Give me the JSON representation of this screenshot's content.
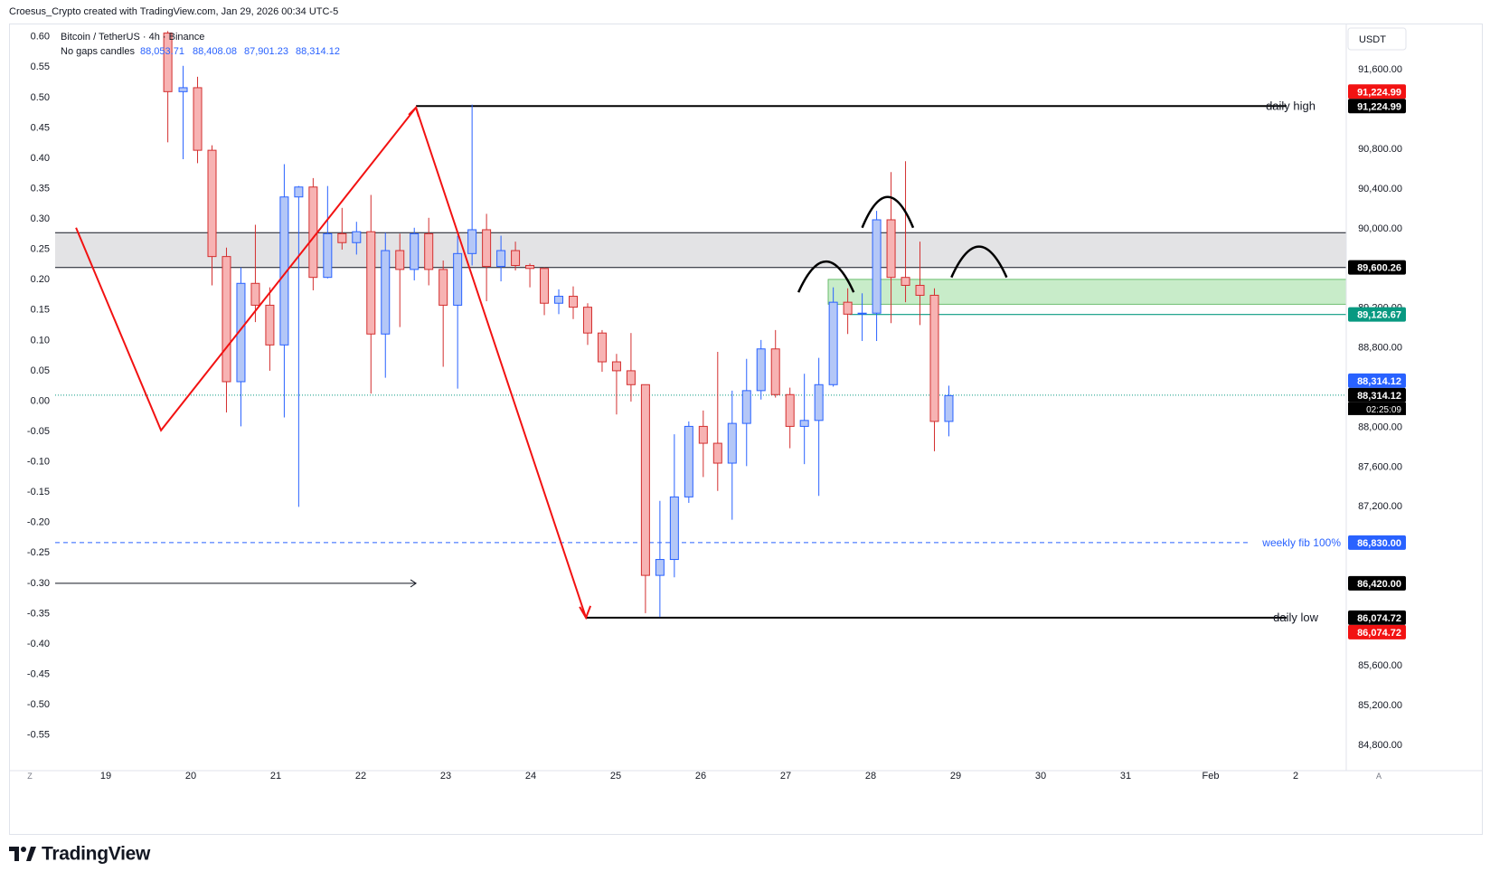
{
  "header": {
    "attribution": "Croesus_Crypto created with TradingView.com, Jan 29, 2026 00:34 UTC-5"
  },
  "legend": {
    "symbol": "Bitcoin / TetherUS · 4h · Binance",
    "mode": "No gaps candles",
    "ohlc": [
      "88,053.71",
      "88,408.08",
      "87,901.23",
      "88,314.12"
    ]
  },
  "brand": "TradingView",
  "currency_button": "USDT",
  "corner_labels": {
    "left": "Z",
    "right": "A"
  },
  "colors": {
    "up": "#b4c7f7",
    "up_border": "#2962ff",
    "down": "#f7b3b3",
    "down_border": "#d32f2f",
    "drawing_red": "#f21212",
    "zone_gray": "#e3e3e5",
    "zone_green": "#c8ecc9",
    "accent_blue": "#2962ff"
  },
  "chart_data": {
    "type": "candlestick",
    "title": "Bitcoin / TetherUS · 4h · Binance",
    "timeframe": "4h",
    "price_axis": {
      "range": [
        84500,
        91900
      ],
      "ticks": [
        "91,600.00",
        "90,800.00",
        "90,400.00",
        "90,000.00",
        "89,200.00",
        "88,800.00",
        "88,000.00",
        "87,600.00",
        "87,200.00",
        "85,600.00",
        "85,200.00",
        "84,800.00"
      ]
    },
    "left_axis": {
      "range": [
        -0.6,
        0.63
      ],
      "ticks": [
        "0.60",
        "0.55",
        "0.50",
        "0.45",
        "0.40",
        "0.35",
        "0.30",
        "0.25",
        "0.20",
        "0.15",
        "0.10",
        "0.05",
        "0.00",
        "-0.05",
        "-0.10",
        "-0.15",
        "-0.20",
        "-0.25",
        "-0.30",
        "-0.35",
        "-0.40",
        "-0.45",
        "-0.50",
        "-0.55"
      ]
    },
    "x_axis": {
      "labels": [
        "19",
        "20",
        "21",
        "22",
        "23",
        "24",
        "25",
        "26",
        "27",
        "28",
        "29",
        "30",
        "31",
        "Feb",
        "2"
      ]
    },
    "candles": [
      {
        "t": 19.73,
        "o": 91960,
        "h": 91980,
        "l": 90860,
        "c": 91370
      },
      {
        "t": 19.91,
        "o": 91370,
        "h": 91630,
        "l": 90690,
        "c": 91410
      },
      {
        "t": 20.08,
        "o": 91410,
        "h": 91520,
        "l": 90650,
        "c": 90780
      },
      {
        "t": 20.25,
        "o": 90780,
        "h": 90830,
        "l": 89420,
        "c": 89710
      },
      {
        "t": 20.42,
        "o": 89710,
        "h": 89800,
        "l": 88140,
        "c": 88450
      },
      {
        "t": 20.59,
        "o": 88450,
        "h": 89600,
        "l": 88000,
        "c": 89440
      },
      {
        "t": 20.76,
        "o": 89440,
        "h": 90030,
        "l": 89050,
        "c": 89220
      },
      {
        "t": 20.93,
        "o": 89220,
        "h": 89400,
        "l": 88560,
        "c": 88820
      },
      {
        "t": 21.1,
        "o": 88820,
        "h": 90640,
        "l": 88090,
        "c": 90310
      },
      {
        "t": 21.27,
        "o": 90310,
        "h": 90420,
        "l": 87190,
        "c": 90410
      },
      {
        "t": 21.44,
        "o": 90410,
        "h": 90500,
        "l": 89370,
        "c": 89500
      },
      {
        "t": 21.61,
        "o": 89500,
        "h": 90420,
        "l": 89490,
        "c": 89940
      },
      {
        "t": 21.78,
        "o": 89940,
        "h": 90200,
        "l": 89780,
        "c": 89850
      },
      {
        "t": 21.95,
        "o": 89850,
        "h": 90060,
        "l": 89730,
        "c": 89960
      },
      {
        "t": 22.12,
        "o": 89960,
        "h": 90330,
        "l": 88330,
        "c": 88930
      },
      {
        "t": 22.29,
        "o": 88930,
        "h": 89950,
        "l": 88490,
        "c": 89770
      },
      {
        "t": 22.46,
        "o": 89770,
        "h": 89940,
        "l": 89000,
        "c": 89580
      },
      {
        "t": 22.63,
        "o": 89580,
        "h": 90000,
        "l": 89470,
        "c": 89940
      },
      {
        "t": 22.8,
        "o": 89940,
        "h": 90100,
        "l": 89420,
        "c": 89580
      },
      {
        "t": 22.97,
        "o": 89580,
        "h": 89670,
        "l": 88600,
        "c": 89220
      },
      {
        "t": 23.14,
        "o": 89220,
        "h": 89920,
        "l": 88380,
        "c": 89740
      },
      {
        "t": 23.31,
        "o": 89740,
        "h": 91240,
        "l": 89620,
        "c": 89980
      },
      {
        "t": 23.48,
        "o": 89980,
        "h": 90140,
        "l": 89260,
        "c": 89610
      },
      {
        "t": 23.65,
        "o": 89610,
        "h": 89920,
        "l": 89460,
        "c": 89770
      },
      {
        "t": 23.82,
        "o": 89770,
        "h": 89860,
        "l": 89570,
        "c": 89620
      },
      {
        "t": 23.99,
        "o": 89620,
        "h": 89640,
        "l": 89400,
        "c": 89590
      },
      {
        "t": 24.16,
        "o": 89590,
        "h": 89600,
        "l": 89120,
        "c": 89240
      },
      {
        "t": 24.33,
        "o": 89240,
        "h": 89380,
        "l": 89130,
        "c": 89310
      },
      {
        "t": 24.5,
        "o": 89310,
        "h": 89410,
        "l": 89080,
        "c": 89200
      },
      {
        "t": 24.67,
        "o": 89200,
        "h": 89240,
        "l": 88820,
        "c": 88940
      },
      {
        "t": 24.84,
        "o": 88940,
        "h": 88970,
        "l": 88550,
        "c": 88650
      },
      {
        "t": 25.01,
        "o": 88650,
        "h": 88730,
        "l": 88120,
        "c": 88560
      },
      {
        "t": 25.18,
        "o": 88560,
        "h": 88940,
        "l": 88250,
        "c": 88420
      },
      {
        "t": 25.35,
        "o": 88420,
        "h": 88420,
        "l": 86120,
        "c": 86500
      },
      {
        "t": 25.52,
        "o": 86500,
        "h": 87250,
        "l": 86080,
        "c": 86660
      },
      {
        "t": 25.69,
        "o": 86660,
        "h": 87920,
        "l": 86480,
        "c": 87290
      },
      {
        "t": 25.86,
        "o": 87290,
        "h": 88050,
        "l": 87230,
        "c": 88000
      },
      {
        "t": 26.03,
        "o": 88000,
        "h": 88160,
        "l": 87490,
        "c": 87830
      },
      {
        "t": 26.2,
        "o": 87830,
        "h": 88750,
        "l": 87350,
        "c": 87630
      },
      {
        "t": 26.37,
        "o": 87630,
        "h": 88360,
        "l": 87060,
        "c": 88030
      },
      {
        "t": 26.54,
        "o": 88030,
        "h": 88680,
        "l": 87600,
        "c": 88360
      },
      {
        "t": 26.71,
        "o": 88360,
        "h": 88870,
        "l": 88270,
        "c": 88780
      },
      {
        "t": 26.88,
        "o": 88780,
        "h": 88970,
        "l": 88290,
        "c": 88320
      },
      {
        "t": 27.05,
        "o": 88320,
        "h": 88390,
        "l": 87780,
        "c": 88000
      },
      {
        "t": 27.22,
        "o": 88000,
        "h": 88530,
        "l": 87620,
        "c": 88060
      },
      {
        "t": 27.39,
        "o": 88060,
        "h": 88690,
        "l": 87300,
        "c": 88420
      },
      {
        "t": 27.56,
        "o": 88420,
        "h": 89400,
        "l": 88400,
        "c": 89250
      },
      {
        "t": 27.73,
        "o": 89250,
        "h": 89390,
        "l": 88930,
        "c": 89130
      },
      {
        "t": 27.9,
        "o": 89140,
        "h": 89340,
        "l": 88860,
        "c": 89140
      },
      {
        "t": 28.07,
        "o": 89140,
        "h": 90170,
        "l": 88860,
        "c": 90080
      },
      {
        "t": 28.24,
        "o": 90080,
        "h": 90560,
        "l": 89040,
        "c": 89500
      },
      {
        "t": 28.41,
        "o": 89500,
        "h": 90670,
        "l": 89250,
        "c": 89420
      },
      {
        "t": 28.58,
        "o": 89420,
        "h": 89860,
        "l": 89020,
        "c": 89320
      },
      {
        "t": 28.75,
        "o": 89320,
        "h": 89390,
        "l": 87750,
        "c": 88050
      },
      {
        "t": 28.92,
        "o": 88050,
        "h": 88410,
        "l": 87900,
        "c": 88310
      }
    ],
    "levels": [
      {
        "price": 91224.99,
        "label": "daily high",
        "badges": [
          "91,224.99",
          "91,224.99"
        ]
      },
      {
        "price": 86074.72,
        "label": "daily low",
        "badges": [
          "86,074.72",
          "86,074.72"
        ]
      },
      {
        "price": 86830.0,
        "label": "weekly fib 100%",
        "badges": [
          "86,830.00"
        ]
      },
      {
        "price": 89126.67,
        "badges": [
          "89,126.67"
        ]
      },
      {
        "price": 89600.26,
        "badges": [
          "89,600.26"
        ]
      },
      {
        "price": 86420.0,
        "badges": [
          "86,420.00"
        ]
      },
      {
        "price": 88314.12,
        "badges": [
          "88,314.12",
          "88,314.12"
        ],
        "countdown": "02:25:09"
      }
    ],
    "zones": [
      {
        "name": "gray-zone",
        "from": 89600,
        "to": 89950
      },
      {
        "name": "green-zone",
        "from": 89230,
        "to": 89480
      }
    ],
    "drawings": {
      "zigzag": [
        {
          "t": 18.65,
          "p": 90000
        },
        {
          "t": 19.65,
          "p": 87960
        },
        {
          "t": 22.65,
          "p": 91210
        },
        {
          "t": 24.65,
          "p": 86074
        }
      ],
      "arrow": [
        {
          "t": 18.65,
          "p": 86420
        },
        {
          "t": 22.65,
          "p": 86420
        }
      ],
      "arcs": [
        {
          "t1": 27.15,
          "t2": 27.8,
          "p": 89350
        },
        {
          "t1": 27.9,
          "t2": 28.5,
          "p": 90000
        },
        {
          "t1": 28.95,
          "t2": 29.6,
          "p": 89500
        }
      ]
    }
  }
}
